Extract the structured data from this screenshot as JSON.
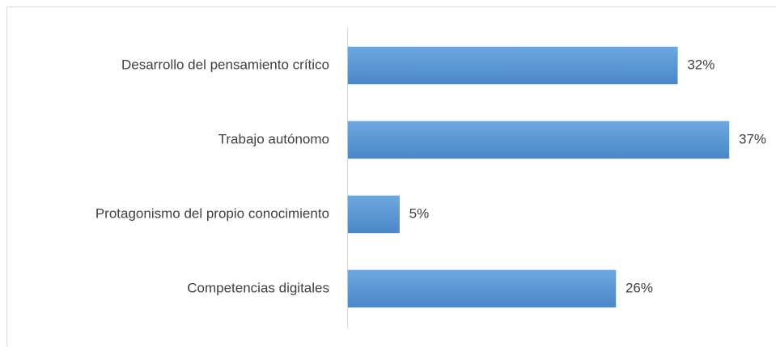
{
  "chart_data": {
    "type": "hbar",
    "categories": [
      "Desarrollo del pensamiento crítico",
      "Trabajo autónomo",
      "Protagonismo del propio conocimiento",
      "Competencias digitales"
    ],
    "values": [
      32,
      37,
      5,
      26
    ],
    "value_labels": [
      "32%",
      "37%",
      "5%",
      "26%"
    ],
    "color": "#5b9bd5"
  }
}
